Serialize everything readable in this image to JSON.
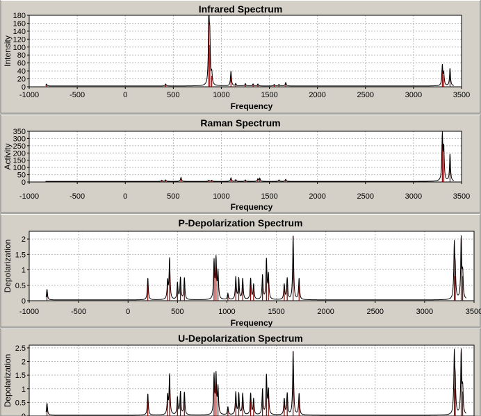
{
  "colors": {
    "background": "#d4d0c8",
    "plot_background": "#ffffff",
    "trace": "#000000",
    "sticks": "#8b0000",
    "grid": "#b8b8b8"
  },
  "chart_data": [
    {
      "type": "line",
      "title": "Infrared Spectrum",
      "xlabel": "Frequency",
      "ylabel": "Intensity",
      "xlim": [
        -1000,
        3500
      ],
      "ylim": [
        0,
        180
      ],
      "xticks": [
        -1000,
        -500,
        0,
        500,
        1000,
        1500,
        2000,
        2500,
        3000,
        3500
      ],
      "yticks": [
        0,
        20,
        40,
        60,
        80,
        100,
        120,
        140,
        160,
        180
      ],
      "grid": true,
      "x_range_drawn": [
        -830,
        3420
      ],
      "peaks": [
        {
          "x": -820,
          "y": 5
        },
        {
          "x": 420,
          "y": 5
        },
        {
          "x": 870,
          "y": 175
        },
        {
          "x": 880,
          "y": 105
        },
        {
          "x": 900,
          "y": 28
        },
        {
          "x": 1100,
          "y": 38
        },
        {
          "x": 1150,
          "y": 6
        },
        {
          "x": 1250,
          "y": 6
        },
        {
          "x": 1330,
          "y": 5
        },
        {
          "x": 1380,
          "y": 5
        },
        {
          "x": 1550,
          "y": 4
        },
        {
          "x": 1600,
          "y": 4
        },
        {
          "x": 1670,
          "y": 9
        },
        {
          "x": 3300,
          "y": 52
        },
        {
          "x": 3315,
          "y": 30
        },
        {
          "x": 3380,
          "y": 45
        }
      ]
    },
    {
      "type": "line",
      "title": "Raman Spectrum",
      "xlabel": "Frequency",
      "ylabel": "Activity",
      "xlim": [
        -1000,
        3500
      ],
      "ylim": [
        0,
        350
      ],
      "xticks": [
        -1000,
        -500,
        0,
        500,
        1000,
        1500,
        2000,
        2500,
        3000,
        3500
      ],
      "yticks": [
        0,
        50,
        100,
        150,
        200,
        250,
        300,
        350
      ],
      "grid": true,
      "x_range_drawn": [
        -830,
        3420
      ],
      "peaks": [
        {
          "x": 380,
          "y": 8
        },
        {
          "x": 420,
          "y": 10
        },
        {
          "x": 580,
          "y": 28
        },
        {
          "x": 870,
          "y": 8
        },
        {
          "x": 900,
          "y": 8
        },
        {
          "x": 1100,
          "y": 25
        },
        {
          "x": 1150,
          "y": 12
        },
        {
          "x": 1250,
          "y": 10
        },
        {
          "x": 1380,
          "y": 18
        },
        {
          "x": 1400,
          "y": 22
        },
        {
          "x": 1600,
          "y": 10
        },
        {
          "x": 1670,
          "y": 14
        },
        {
          "x": 3300,
          "y": 320
        },
        {
          "x": 3315,
          "y": 220
        },
        {
          "x": 3380,
          "y": 190
        }
      ]
    },
    {
      "type": "line",
      "title": "P-Depolarization Spectrum",
      "xlabel": "Frequency",
      "ylabel": "Depolarization",
      "xlim": [
        -1000,
        3500
      ],
      "ylim": [
        0,
        2.25
      ],
      "xticks": [
        -1000,
        -500,
        0,
        500,
        1000,
        1500,
        2000,
        2500,
        3000,
        3500
      ],
      "yticks": [
        "0",
        "0.5",
        "1",
        "1.5",
        "2"
      ],
      "grid": true,
      "x_range_drawn": [
        -830,
        3420
      ],
      "peaks": [
        {
          "x": -820,
          "y": 0.35
        },
        {
          "x": 200,
          "y": 0.72
        },
        {
          "x": 400,
          "y": 0.6
        },
        {
          "x": 420,
          "y": 1.35
        },
        {
          "x": 500,
          "y": 0.55
        },
        {
          "x": 530,
          "y": 0.72
        },
        {
          "x": 570,
          "y": 0.72
        },
        {
          "x": 870,
          "y": 1.25
        },
        {
          "x": 890,
          "y": 1.3
        },
        {
          "x": 910,
          "y": 0.9
        },
        {
          "x": 1010,
          "y": 0.2
        },
        {
          "x": 1090,
          "y": 0.75
        },
        {
          "x": 1120,
          "y": 0.7
        },
        {
          "x": 1160,
          "y": 0.7
        },
        {
          "x": 1240,
          "y": 0.7
        },
        {
          "x": 1270,
          "y": 0.5
        },
        {
          "x": 1360,
          "y": 0.8
        },
        {
          "x": 1400,
          "y": 1.3
        },
        {
          "x": 1420,
          "y": 0.8
        },
        {
          "x": 1580,
          "y": 0.5
        },
        {
          "x": 1610,
          "y": 0.7
        },
        {
          "x": 1670,
          "y": 2.1
        },
        {
          "x": 1730,
          "y": 0.7
        },
        {
          "x": 3300,
          "y": 1.75
        },
        {
          "x": 3310,
          "y": 0.8
        },
        {
          "x": 3370,
          "y": 2.0
        },
        {
          "x": 3385,
          "y": 0.8
        }
      ]
    },
    {
      "type": "line",
      "title": "U-Depolarization Spectrum",
      "xlabel": "",
      "ylabel": "Depolarization",
      "xlim": [
        -1000,
        3500
      ],
      "ylim": [
        0,
        2.6
      ],
      "yticks": [
        "0",
        "0.5",
        "1",
        "1.5",
        "2",
        "2.5"
      ],
      "grid": true,
      "x_range_drawn": [
        -830,
        3420
      ],
      "peaks": [
        {
          "x": -820,
          "y": 0.45
        },
        {
          "x": 200,
          "y": 0.8
        },
        {
          "x": 400,
          "y": 0.7
        },
        {
          "x": 420,
          "y": 1.5
        },
        {
          "x": 500,
          "y": 0.65
        },
        {
          "x": 530,
          "y": 0.85
        },
        {
          "x": 570,
          "y": 0.85
        },
        {
          "x": 870,
          "y": 1.45
        },
        {
          "x": 890,
          "y": 1.45
        },
        {
          "x": 910,
          "y": 1.0
        },
        {
          "x": 1010,
          "y": 0.3
        },
        {
          "x": 1090,
          "y": 0.85
        },
        {
          "x": 1120,
          "y": 0.8
        },
        {
          "x": 1160,
          "y": 0.8
        },
        {
          "x": 1240,
          "y": 0.8
        },
        {
          "x": 1270,
          "y": 0.6
        },
        {
          "x": 1360,
          "y": 0.95
        },
        {
          "x": 1400,
          "y": 1.45
        },
        {
          "x": 1420,
          "y": 0.9
        },
        {
          "x": 1580,
          "y": 0.6
        },
        {
          "x": 1610,
          "y": 0.8
        },
        {
          "x": 1670,
          "y": 2.38
        },
        {
          "x": 1730,
          "y": 0.8
        },
        {
          "x": 3300,
          "y": 2.2
        },
        {
          "x": 3310,
          "y": 1.0
        },
        {
          "x": 3370,
          "y": 2.35
        },
        {
          "x": 3385,
          "y": 0.9
        }
      ]
    }
  ]
}
